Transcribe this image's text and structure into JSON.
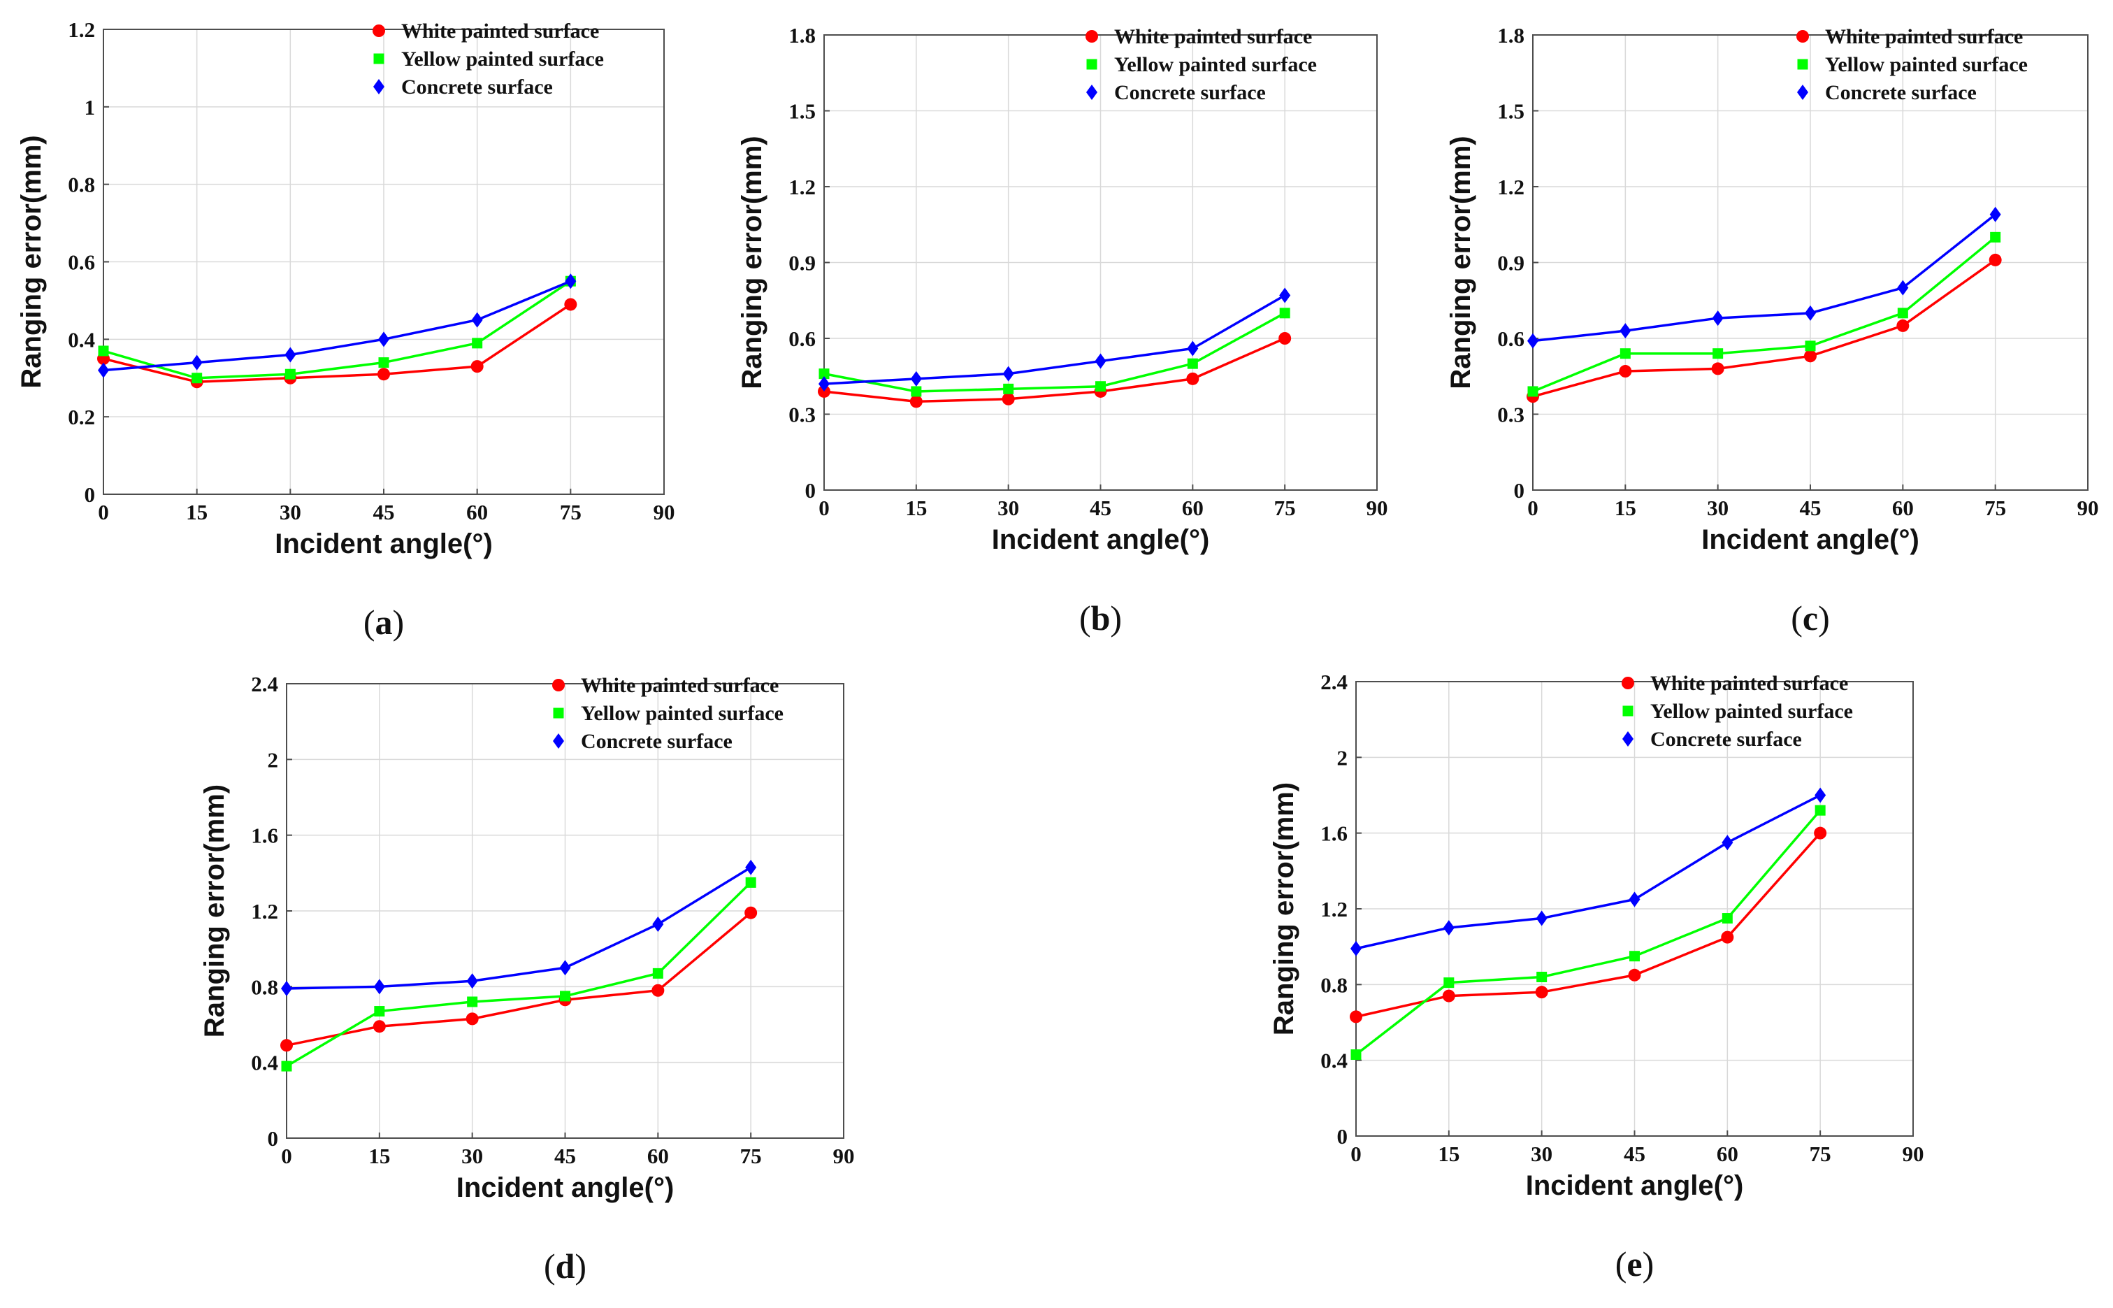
{
  "chart_data": [
    {
      "type": "line",
      "panel_label": "(a)",
      "panel_letter": "a",
      "xlabel": "Incident angle(°)",
      "ylabel": "Ranging error(mm)",
      "xlim": [
        0,
        90
      ],
      "ylim": [
        0,
        1.2
      ],
      "x_ticks": [
        0,
        15,
        30,
        45,
        60,
        75,
        90
      ],
      "x_tick_labels": [
        "0",
        "15",
        "30",
        "45",
        "60",
        "75",
        "90"
      ],
      "y_ticks": [
        0,
        0.2,
        0.4,
        0.6,
        0.8,
        1.0,
        1.2
      ],
      "y_tick_labels": [
        "0",
        "0.2",
        "0.4",
        "0.6",
        "0.8",
        "1",
        "1.2"
      ],
      "grid": true,
      "legend_position": "top-right",
      "x": [
        0,
        15,
        30,
        45,
        60,
        75
      ],
      "series": [
        {
          "name": "White painted surface",
          "color": "#ff0000",
          "marker": "circle",
          "values": [
            0.35,
            0.29,
            0.3,
            0.31,
            0.33,
            0.49
          ]
        },
        {
          "name": "Yellow painted surface",
          "color": "#00ff00",
          "marker": "square",
          "values": [
            0.37,
            0.3,
            0.31,
            0.34,
            0.39,
            0.55
          ]
        },
        {
          "name": "Concrete surface",
          "color": "#0000ff",
          "marker": "diamond",
          "values": [
            0.32,
            0.34,
            0.36,
            0.4,
            0.45,
            0.55
          ]
        }
      ]
    },
    {
      "type": "line",
      "panel_label": "(b)",
      "panel_letter": "b",
      "xlabel": "Incident angle(°)",
      "ylabel": "Ranging error(mm)",
      "xlim": [
        0,
        90
      ],
      "ylim": [
        0,
        1.8
      ],
      "x_ticks": [
        0,
        15,
        30,
        45,
        60,
        75,
        90
      ],
      "x_tick_labels": [
        "0",
        "15",
        "30",
        "45",
        "60",
        "75",
        "90"
      ],
      "y_ticks": [
        0,
        0.3,
        0.6,
        0.9,
        1.2,
        1.5,
        1.8
      ],
      "y_tick_labels": [
        "0",
        "0.3",
        "0.6",
        "0.9",
        "1.2",
        "1.5",
        "1.8"
      ],
      "grid": true,
      "legend_position": "top-right",
      "x": [
        0,
        15,
        30,
        45,
        60,
        75
      ],
      "series": [
        {
          "name": "White painted surface",
          "color": "#ff0000",
          "marker": "circle",
          "values": [
            0.39,
            0.35,
            0.36,
            0.39,
            0.44,
            0.6
          ]
        },
        {
          "name": "Yellow painted surface",
          "color": "#00ff00",
          "marker": "square",
          "values": [
            0.46,
            0.39,
            0.4,
            0.41,
            0.5,
            0.7
          ]
        },
        {
          "name": "Concrete surface",
          "color": "#0000ff",
          "marker": "diamond",
          "values": [
            0.42,
            0.44,
            0.46,
            0.51,
            0.56,
            0.77
          ]
        }
      ]
    },
    {
      "type": "line",
      "panel_label": "(c)",
      "panel_letter": "c",
      "xlabel": "Incident angle(°)",
      "ylabel": "Ranging error(mm)",
      "xlim": [
        0,
        90
      ],
      "ylim": [
        0,
        1.8
      ],
      "x_ticks": [
        0,
        15,
        30,
        45,
        60,
        75,
        90
      ],
      "x_tick_labels": [
        "0",
        "15",
        "30",
        "45",
        "60",
        "75",
        "90"
      ],
      "y_ticks": [
        0,
        0.3,
        0.6,
        0.9,
        1.2,
        1.5,
        1.8
      ],
      "y_tick_labels": [
        "0",
        "0.3",
        "0.6",
        "0.9",
        "1.2",
        "1.5",
        "1.8"
      ],
      "grid": true,
      "legend_position": "top-right",
      "x": [
        0,
        15,
        30,
        45,
        60,
        75
      ],
      "series": [
        {
          "name": "White painted surface",
          "color": "#ff0000",
          "marker": "circle",
          "values": [
            0.37,
            0.47,
            0.48,
            0.53,
            0.65,
            0.91
          ]
        },
        {
          "name": "Yellow painted surface",
          "color": "#00ff00",
          "marker": "square",
          "values": [
            0.39,
            0.54,
            0.54,
            0.57,
            0.7,
            1.0
          ]
        },
        {
          "name": "Concrete surface",
          "color": "#0000ff",
          "marker": "diamond",
          "values": [
            0.59,
            0.63,
            0.68,
            0.7,
            0.8,
            1.09
          ]
        }
      ]
    },
    {
      "type": "line",
      "panel_label": "(d)",
      "panel_letter": "d",
      "xlabel": "Incident angle(°)",
      "ylabel": "Ranging error(mm)",
      "xlim": [
        0,
        90
      ],
      "ylim": [
        0,
        2.4
      ],
      "x_ticks": [
        0,
        15,
        30,
        45,
        60,
        75,
        90
      ],
      "x_tick_labels": [
        "0",
        "15",
        "30",
        "45",
        "60",
        "75",
        "90"
      ],
      "y_ticks": [
        0,
        0.4,
        0.8,
        1.2,
        1.6,
        2.0,
        2.4
      ],
      "y_tick_labels": [
        "0",
        "0.4",
        "0.8",
        "1.2",
        "1.6",
        "2",
        "2.4"
      ],
      "grid": true,
      "legend_position": "top-right",
      "x": [
        0,
        15,
        30,
        45,
        60,
        75
      ],
      "series": [
        {
          "name": "White painted surface",
          "color": "#ff0000",
          "marker": "circle",
          "values": [
            0.49,
            0.59,
            0.63,
            0.73,
            0.78,
            1.19
          ]
        },
        {
          "name": "Yellow painted surface",
          "color": "#00ff00",
          "marker": "square",
          "values": [
            0.38,
            0.67,
            0.72,
            0.75,
            0.87,
            1.35
          ]
        },
        {
          "name": "Concrete surface",
          "color": "#0000ff",
          "marker": "diamond",
          "values": [
            0.79,
            0.8,
            0.83,
            0.9,
            1.13,
            1.43
          ]
        }
      ]
    },
    {
      "type": "line",
      "panel_label": "(e)",
      "panel_letter": "e",
      "xlabel": "Incident angle(°)",
      "ylabel": "Ranging error(mm)",
      "xlim": [
        0,
        90
      ],
      "ylim": [
        0,
        2.4
      ],
      "x_ticks": [
        0,
        15,
        30,
        45,
        60,
        75,
        90
      ],
      "x_tick_labels": [
        "0",
        "15",
        "30",
        "45",
        "60",
        "75",
        "90"
      ],
      "y_ticks": [
        0,
        0.4,
        0.8,
        1.2,
        1.6,
        2.0,
        2.4
      ],
      "y_tick_labels": [
        "0",
        "0.4",
        "0.8",
        "1.2",
        "1.6",
        "2",
        "2.4"
      ],
      "grid": true,
      "legend_position": "top-right",
      "x": [
        0,
        15,
        30,
        45,
        60,
        75
      ],
      "series": [
        {
          "name": "White painted surface",
          "color": "#ff0000",
          "marker": "circle",
          "values": [
            0.63,
            0.74,
            0.76,
            0.85,
            1.05,
            1.6
          ]
        },
        {
          "name": "Yellow painted surface",
          "color": "#00ff00",
          "marker": "square",
          "values": [
            0.43,
            0.81,
            0.84,
            0.95,
            1.15,
            1.72
          ]
        },
        {
          "name": "Concrete surface",
          "color": "#0000ff",
          "marker": "diamond",
          "values": [
            0.99,
            1.1,
            1.15,
            1.25,
            1.55,
            1.8
          ]
        }
      ]
    }
  ]
}
